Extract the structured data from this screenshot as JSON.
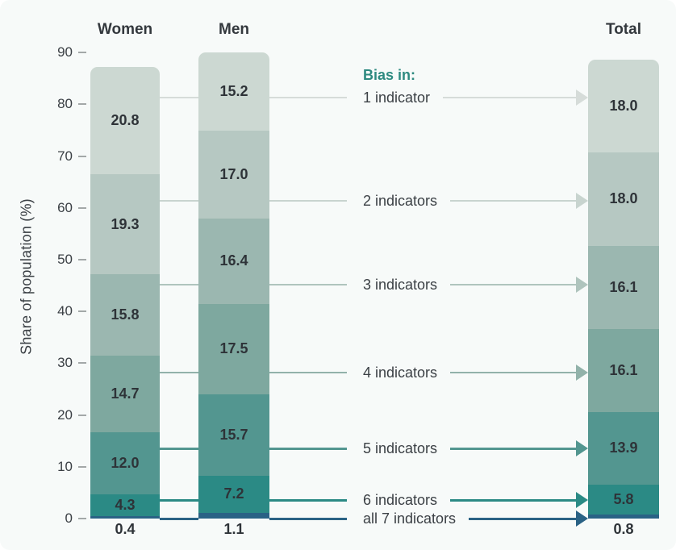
{
  "chart_data": {
    "type": "bar",
    "stacked": true,
    "title": "",
    "ylabel": "Share of population (%)",
    "xlabel": "",
    "ylim": [
      0,
      90
    ],
    "yticks": [
      0,
      10,
      20,
      30,
      40,
      50,
      60,
      70,
      80,
      90
    ],
    "grid": false,
    "legend_title": "Bias in:",
    "legend_position": "middle, between Men and Total bars",
    "categories": [
      "Women",
      "Men",
      "Total"
    ],
    "series": [
      {
        "name": "1 indicator",
        "color": "#ccd8d2",
        "line_color": "#d6dcd9",
        "values": {
          "Women": "20.8",
          "Men": "15.2",
          "Total": "18.0"
        }
      },
      {
        "name": "2 indicators",
        "color": "#b6c8c2",
        "line_color": "#c8d4cf",
        "values": {
          "Women": "19.3",
          "Men": "17.0",
          "Total": "18.0"
        }
      },
      {
        "name": "3 indicators",
        "color": "#9bb7b0",
        "line_color": "#afc4bd",
        "values": {
          "Women": "15.8",
          "Men": "16.4",
          "Total": "16.1"
        }
      },
      {
        "name": "4 indicators",
        "color": "#7ea89f",
        "line_color": "#92b2aa",
        "values": {
          "Women": "14.7",
          "Men": "17.5",
          "Total": "16.1"
        }
      },
      {
        "name": "5 indicators",
        "color": "#539690",
        "line_color": "#539690",
        "values": {
          "Women": "12.0",
          "Men": "15.7",
          "Total": "13.9"
        }
      },
      {
        "name": "6 indicators",
        "color": "#2b8a85",
        "line_color": "#2b8a85",
        "values": {
          "Women": "4.3",
          "Men": "7.2",
          "Total": "5.8"
        }
      },
      {
        "name": "all 7 indicators",
        "color": "#2a6285",
        "line_color": "#2a6285",
        "values": {
          "Women": "0.4",
          "Men": "1.1",
          "Total": "0.8"
        }
      }
    ]
  },
  "colors": {
    "background": "#f7faf9",
    "text": "#33383d",
    "tick": "#a3a8a8",
    "accent_teal": "#2e8a80"
  }
}
